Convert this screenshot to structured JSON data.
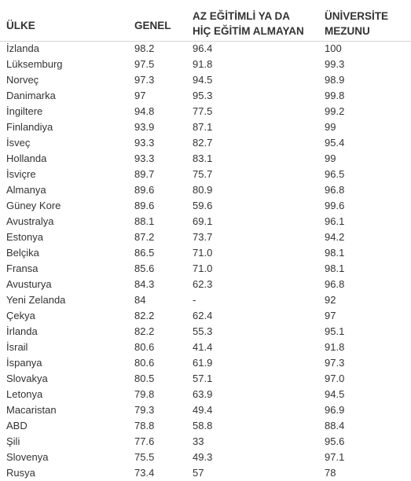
{
  "table": {
    "headers": {
      "country": "ÜLKE",
      "general": "GENEL",
      "low_education": [
        "AZ EĞİTİMLİ YA DA",
        "HİÇ EĞİTİM ALMAYAN"
      ],
      "university": [
        "ÜNİVERSİTE",
        "MEZUNU"
      ]
    },
    "rows": [
      [
        "İzlanda",
        "98.2",
        "96.4",
        "100"
      ],
      [
        "Lüksemburg",
        "97.5",
        "91.8",
        "99.3"
      ],
      [
        "Norveç",
        "97.3",
        "94.5",
        "98.9"
      ],
      [
        "Danimarka",
        "97",
        "95.3",
        "99.8"
      ],
      [
        "İngiltere",
        "94.8",
        "77.5",
        "99.2"
      ],
      [
        "Finlandiya",
        "93.9",
        "87.1",
        "99"
      ],
      [
        "İsveç",
        "93.3",
        "82.7",
        "95.4"
      ],
      [
        "Hollanda",
        "93.3",
        "83.1",
        "99"
      ],
      [
        "İsviçre",
        "89.7",
        "75.7",
        "96.5"
      ],
      [
        "Almanya",
        "89.6",
        "80.9",
        "96.8"
      ],
      [
        "Güney Kore",
        "89.6",
        "59.6",
        "99.6"
      ],
      [
        "Avustralya",
        "88.1",
        "69.1",
        "96.1"
      ],
      [
        "Estonya",
        "87.2",
        "73.7",
        "94.2"
      ],
      [
        "Belçika",
        "86.5",
        "71.0",
        "98.1"
      ],
      [
        "Fransa",
        "85.6",
        "71.0",
        "98.1"
      ],
      [
        "Avusturya",
        "84.3",
        "62.3",
        "96.8"
      ],
      [
        "Yeni Zelanda",
        "84",
        "-",
        "92"
      ],
      [
        "Çekya",
        "82.2",
        "62.4",
        "97"
      ],
      [
        "İrlanda",
        "82.2",
        "55.3",
        "95.1"
      ],
      [
        "İsrail",
        "80.6",
        "41.4",
        "91.8"
      ],
      [
        "İspanya",
        "80.6",
        "61.9",
        "97.3"
      ],
      [
        "Slovakya",
        "80.5",
        "57.1",
        "97.0"
      ],
      [
        "Letonya",
        "79.8",
        "63.9",
        "94.5"
      ],
      [
        "Macaristan",
        "79.3",
        "49.4",
        "96.9"
      ],
      [
        "ABD",
        "78.8",
        "58.8",
        "88.4"
      ],
      [
        "Şili",
        "77.6",
        "33",
        "95.6"
      ],
      [
        "Slovenya",
        "75.5",
        "49.3",
        "97.1"
      ],
      [
        "Rusya",
        "73.4",
        "57",
        "78"
      ]
    ]
  }
}
